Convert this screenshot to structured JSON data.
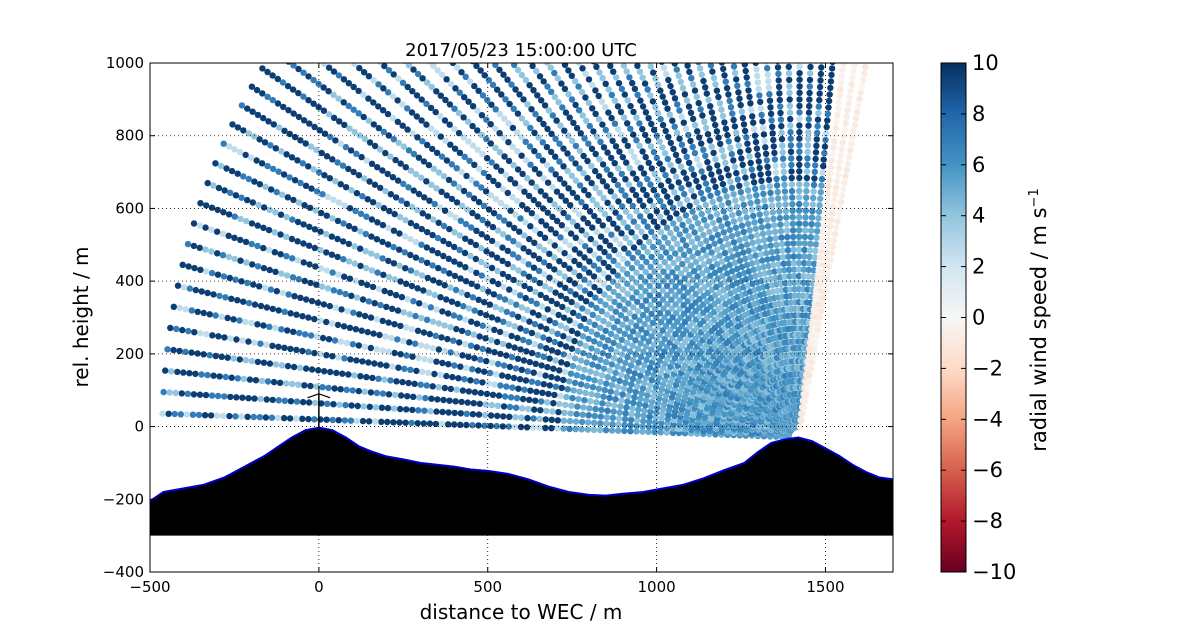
{
  "chart_data": {
    "type": "scatter",
    "title": "2017/05/23 15:00:00 UTC",
    "xlabel": "distance to WEC / m",
    "ylabel": "rel. height / m",
    "xlim": [
      -500,
      1700
    ],
    "ylim": [
      -400,
      1000
    ],
    "xticks": [
      -500,
      0,
      500,
      1000,
      1500
    ],
    "xtick_labels": [
      "−500",
      "0",
      "500",
      "1000",
      "1500"
    ],
    "yticks": [
      -400,
      -200,
      0,
      200,
      400,
      600,
      800,
      1000
    ],
    "ytick_labels": [
      "−400",
      "−200",
      "0",
      "200",
      "400",
      "600",
      "800",
      "1000"
    ],
    "grid": true,
    "grid_style": "dotted",
    "scan": {
      "lidar_position": [
        1420,
        -30
      ],
      "elevation_start_deg": 178,
      "elevation_end_deg": 79,
      "beam_count": 56,
      "max_range": 1900,
      "gate_spacing": 18
    },
    "terrain": {
      "x": [
        -500,
        -460,
        -400,
        -340,
        -280,
        -220,
        -160,
        -120,
        -80,
        -40,
        0,
        40,
        80,
        120,
        160,
        200,
        250,
        300,
        350,
        400,
        450,
        500,
        560,
        620,
        680,
        740,
        800,
        850,
        900,
        960,
        1020,
        1080,
        1140,
        1200,
        1260,
        1300,
        1340,
        1380,
        1420,
        1460,
        1500,
        1540,
        1580,
        1620,
        1660,
        1700
      ],
      "y": [
        -205,
        -180,
        -170,
        -160,
        -140,
        -110,
        -80,
        -55,
        -30,
        -10,
        -3,
        -10,
        -30,
        -55,
        -70,
        -82,
        -90,
        -100,
        -105,
        -110,
        -118,
        -122,
        -130,
        -145,
        -165,
        -180,
        -188,
        -190,
        -185,
        -180,
        -170,
        -160,
        -142,
        -120,
        -100,
        -70,
        -45,
        -35,
        -30,
        -40,
        -60,
        -80,
        -105,
        -125,
        -140,
        -145
      ],
      "base": -300,
      "fill_color": "#000000",
      "line_color": "#0000c8"
    },
    "turbine": {
      "x": 0,
      "hub_height": 90,
      "rotor_radius": 40
    },
    "colorbar": {
      "label": "radial wind speed / m s",
      "label_superscript": "−1",
      "range": [
        -10,
        10
      ],
      "ticks": [
        -10,
        -8,
        -6,
        -4,
        -2,
        0,
        2,
        4,
        6,
        8,
        10
      ],
      "tick_labels": [
        "−10",
        "−8",
        "−6",
        "−4",
        "−2",
        "0",
        "2",
        "4",
        "6",
        "8",
        "10"
      ],
      "colormap": "RdBu",
      "colors": [
        "#67001f",
        "#b2182b",
        "#d6604d",
        "#f4a582",
        "#fddbc7",
        "#f7f7f7",
        "#d1e5f0",
        "#92c5de",
        "#4393c3",
        "#2166ac",
        "#053061"
      ]
    }
  }
}
